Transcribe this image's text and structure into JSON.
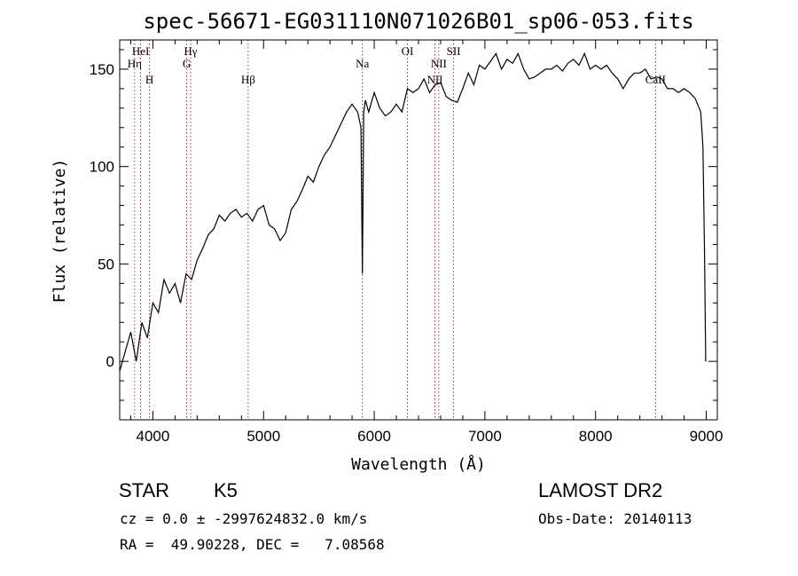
{
  "chart_data": {
    "type": "line",
    "title": "spec-56671-EG031110N071026B01_sp06-053.fits",
    "xlabel": "Wavelength (Å)",
    "ylabel": "Flux (relative)",
    "xlim": [
      3700,
      9100
    ],
    "ylim": [
      -30,
      165
    ],
    "x_ticks": [
      4000,
      5000,
      6000,
      7000,
      8000,
      9000
    ],
    "y_ticks": [
      0,
      50,
      100,
      150
    ],
    "grid": false,
    "series": [
      {
        "x": [
          3700,
          3750,
          3800,
          3850,
          3900,
          3950,
          4000,
          4050,
          4100,
          4150,
          4200,
          4250,
          4300,
          4350,
          4400,
          4450,
          4500,
          4550,
          4600,
          4650,
          4700,
          4750,
          4800,
          4850,
          4900,
          4950,
          5000,
          5050,
          5100,
          5150,
          5200,
          5250,
          5300,
          5350,
          5400,
          5450,
          5500,
          5550,
          5600,
          5650,
          5700,
          5750,
          5800,
          5850,
          5880,
          5893,
          5905,
          5920,
          5950,
          6000,
          6050,
          6100,
          6150,
          6200,
          6250,
          6300,
          6350,
          6400,
          6450,
          6500,
          6550,
          6600,
          6650,
          6700,
          6750,
          6800,
          6850,
          6900,
          6950,
          7000,
          7050,
          7100,
          7150,
          7200,
          7250,
          7300,
          7350,
          7400,
          7450,
          7500,
          7550,
          7600,
          7650,
          7700,
          7750,
          7800,
          7850,
          7900,
          7950,
          8000,
          8050,
          8100,
          8150,
          8200,
          8250,
          8300,
          8350,
          8400,
          8450,
          8500,
          8550,
          8600,
          8650,
          8700,
          8750,
          8800,
          8850,
          8900,
          8950,
          8970,
          8985,
          8995
        ],
        "values": [
          -5,
          5,
          15,
          0,
          20,
          12,
          30,
          25,
          42,
          35,
          40,
          30,
          45,
          42,
          52,
          58,
          65,
          68,
          75,
          72,
          76,
          78,
          74,
          76,
          72,
          78,
          80,
          70,
          68,
          62,
          66,
          78,
          82,
          88,
          95,
          92,
          100,
          106,
          110,
          116,
          122,
          128,
          132,
          128,
          120,
          45,
          128,
          134,
          128,
          138,
          130,
          126,
          128,
          132,
          128,
          140,
          138,
          140,
          145,
          138,
          142,
          143,
          136,
          134,
          133,
          140,
          148,
          142,
          152,
          150,
          154,
          158,
          150,
          155,
          153,
          158,
          150,
          145,
          146,
          148,
          150,
          150,
          152,
          149,
          153,
          155,
          152,
          158,
          150,
          152,
          150,
          152,
          148,
          145,
          140,
          145,
          148,
          148,
          150,
          145,
          146,
          145,
          140,
          140,
          138,
          140,
          138,
          135,
          128,
          110,
          55,
          0
        ]
      }
    ],
    "spectral_lines": [
      {
        "label": "HeI",
        "x": 3889
      },
      {
        "label": "Hη",
        "x": 3835
      },
      {
        "label": "H",
        "x": 3969
      },
      {
        "label": "Hγ",
        "x": 4341
      },
      {
        "label": "G",
        "x": 4305
      },
      {
        "label": "Hβ",
        "x": 4861
      },
      {
        "label": "Na",
        "x": 5893
      },
      {
        "label": "OI",
        "x": 6300
      },
      {
        "label": "NII",
        "x": 6583
      },
      {
        "label": "NII",
        "x": 6548
      },
      {
        "label": "SII",
        "x": 6717
      },
      {
        "label": "CaII",
        "x": 8542
      }
    ]
  },
  "info": {
    "object_class": "STAR",
    "subclass": "K5",
    "survey": "LAMOST DR2",
    "cz": "cz = 0.0 ± -2997624832.0 km/s",
    "obs_date": "Obs-Date: 20140113",
    "radec": "RA =  49.90228, DEC =   7.08568"
  }
}
